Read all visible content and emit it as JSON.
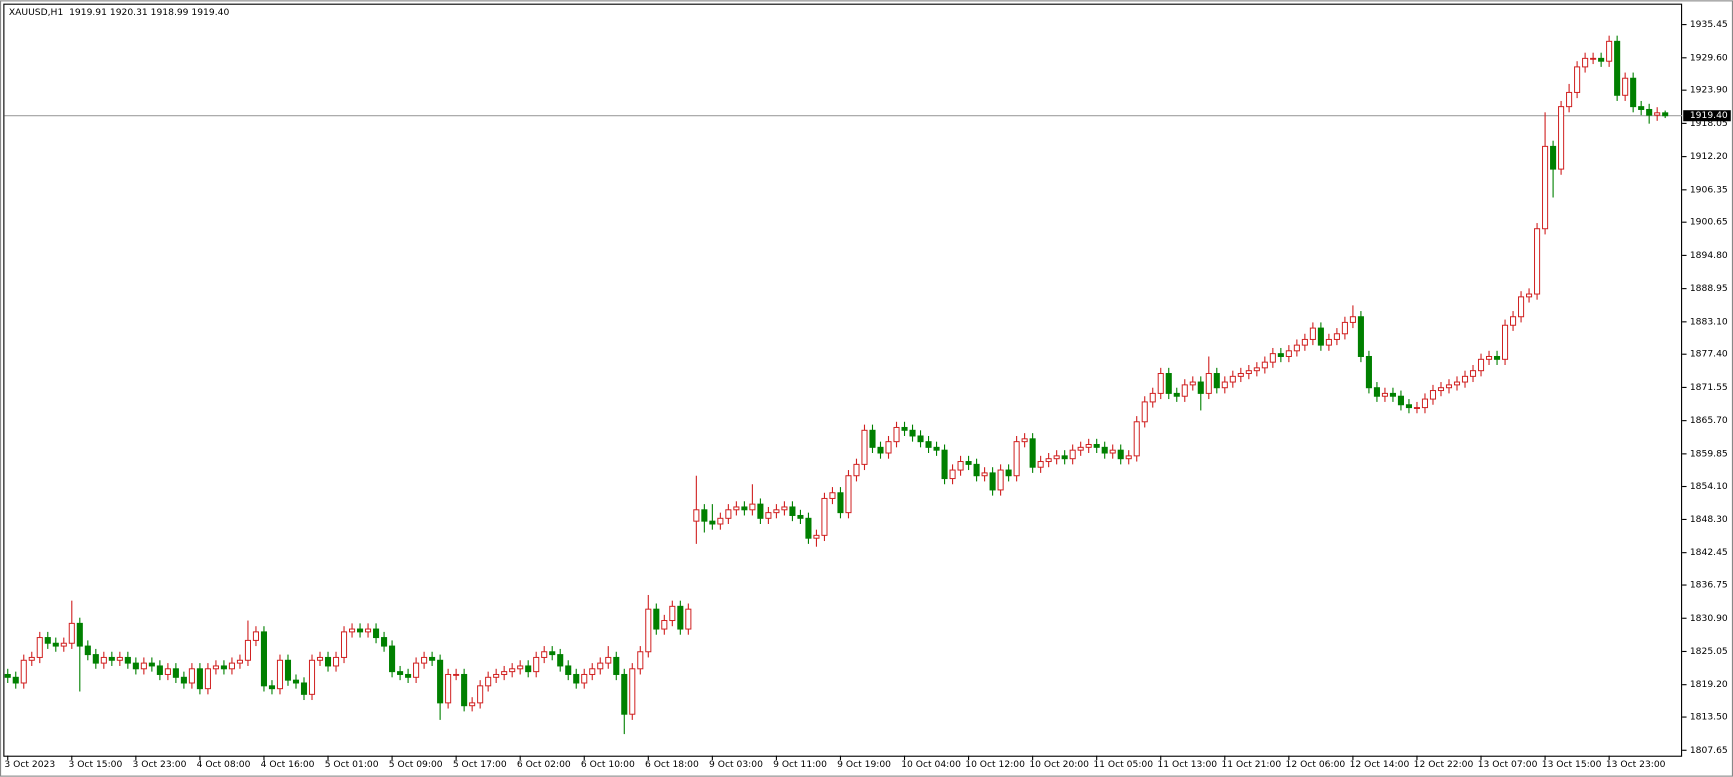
{
  "chart_data": {
    "type": "candlestick",
    "header": "XAUUSD,H1  1919.91 1920.31 1918.99 1919.40",
    "categories": [
      "3 Oct 2023",
      null,
      null,
      null,
      null,
      null,
      null,
      null,
      "3 Oct 15:00",
      null,
      null,
      null,
      null,
      null,
      null,
      null,
      "3 Oct 23:00",
      null,
      null,
      null,
      null,
      null,
      null,
      null,
      "4 Oct 08:00",
      null,
      null,
      null,
      null,
      null,
      null,
      null,
      "4 Oct 16:00",
      null,
      null,
      null,
      null,
      null,
      null,
      null,
      "5 Oct 01:00",
      null,
      null,
      null,
      null,
      null,
      null,
      null,
      "5 Oct 09:00",
      null,
      null,
      null,
      null,
      null,
      null,
      null,
      "5 Oct 17:00",
      null,
      null,
      null,
      null,
      null,
      null,
      null,
      "6 Oct 02:00",
      null,
      null,
      null,
      null,
      null,
      null,
      null,
      "6 Oct 10:00",
      null,
      null,
      null,
      null,
      null,
      null,
      null,
      "6 Oct 18:00",
      null,
      null,
      null,
      null,
      null,
      null,
      null,
      "9 Oct 03:00",
      null,
      null,
      null,
      null,
      null,
      null,
      null,
      "9 Oct 11:00",
      null,
      null,
      null,
      null,
      null,
      null,
      null,
      "9 Oct 19:00",
      null,
      null,
      null,
      null,
      null,
      null,
      null,
      "10 Oct 04:00",
      null,
      null,
      null,
      null,
      null,
      null,
      null,
      "10 Oct 12:00",
      null,
      null,
      null,
      null,
      null,
      null,
      null,
      "10 Oct 20:00",
      null,
      null,
      null,
      null,
      null,
      null,
      null,
      "11 Oct 05:00",
      null,
      null,
      null,
      null,
      null,
      null,
      null,
      "11 Oct 13:00",
      null,
      null,
      null,
      null,
      null,
      null,
      null,
      "11 Oct 21:00",
      null,
      null,
      null,
      null,
      null,
      null,
      null,
      "12 Oct 06:00",
      null,
      null,
      null,
      null,
      null,
      null,
      null,
      "12 Oct 14:00",
      null,
      null,
      null,
      null,
      null,
      null,
      null,
      "12 Oct 22:00",
      null,
      null,
      null,
      null,
      null,
      null,
      null,
      "13 Oct 07:00",
      null,
      null,
      null,
      null,
      null,
      null,
      null,
      "13 Oct 15:00",
      null,
      null,
      null,
      null,
      null,
      null,
      null,
      "13 Oct 23:00",
      null,
      null,
      null,
      null,
      null,
      null,
      null
    ],
    "open": [
      1821,
      1820.5,
      1819.5,
      1823.5,
      1824,
      1827.5,
      1826.5,
      1826,
      1826.5,
      1830,
      1826,
      1824.5,
      1823,
      1824,
      1823.5,
      1824,
      1823,
      1822,
      1823,
      1822.5,
      1821,
      1822,
      1820.5,
      1819.5,
      1822,
      1818.5,
      1822,
      1822.5,
      1822,
      1823,
      1823.5,
      1827,
      1828.5,
      1819,
      1818.5,
      1823.5,
      1820,
      1819.5,
      1817.5,
      1823.5,
      1824,
      1822.5,
      1824,
      1828.5,
      1829,
      1828.5,
      1829,
      1827.5,
      1826,
      1821.5,
      1821,
      1820.5,
      1823,
      1824,
      1823.5,
      1816,
      1821,
      1821,
      1815.5,
      1816,
      1819,
      1820.5,
      1821,
      1821.5,
      1822,
      1822.5,
      1821.5,
      1824,
      1825,
      1824.5,
      1822.5,
      1821,
      1819.5,
      1821,
      1822,
      1823,
      1824,
      1821,
      1814,
      1822,
      1825,
      1832.5,
      1829,
      1830.5,
      1833,
      1829,
      1848,
      1850,
      1848,
      1847.5,
      1848.5,
      1850,
      1850.5,
      1850,
      1851,
      1848.5,
      1849.5,
      1850,
      1850.5,
      1849,
      1848.5,
      1845,
      1845.5,
      1852,
      1853,
      1849.5,
      1856,
      1858,
      1864,
      1861,
      1860,
      1862,
      1864.5,
      1864,
      1863,
      1862,
      1861,
      1860.5,
      1855.5,
      1857,
      1858.5,
      1858,
      1856,
      1856.5,
      1853.5,
      1857,
      1856,
      1862,
      1862.5,
      1857.5,
      1858.5,
      1859,
      1859.5,
      1859,
      1860.5,
      1861,
      1861.5,
      1861,
      1860,
      1860.5,
      1859,
      1859.5,
      1865.5,
      1869,
      1870.5,
      1874,
      1870.5,
      1870,
      1872,
      1872.5,
      1870.5,
      1874,
      1871.5,
      1872.5,
      1873.5,
      1874,
      1874.5,
      1875,
      1876,
      1877.5,
      1877,
      1878,
      1879,
      1880,
      1882,
      1879,
      1880,
      1881,
      1883,
      1884,
      1877,
      1871.5,
      1870,
      1870.5,
      1870,
      1868.5,
      1868,
      1868,
      1869.5,
      1871,
      1871.5,
      1872,
      1872.5,
      1873.5,
      1874.5,
      1876.5,
      1877,
      1876.5,
      1882.5,
      1884,
      1887.5,
      1888,
      1899.5,
      1914,
      1910,
      1921,
      1923.5,
      1928,
      1929.5,
      1929.5,
      1929,
      1932.5,
      1923,
      1926,
      1921,
      1920.5,
      1919.5,
      1919.91
    ],
    "high": [
      1822,
      1821.5,
      1824.5,
      1825,
      1828.5,
      1828.5,
      1827.5,
      1827.5,
      1834,
      1831,
      1827,
      1825.5,
      1825,
      1825,
      1825,
      1825,
      1824,
      1824,
      1824,
      1823.5,
      1823,
      1823,
      1821.5,
      1823,
      1823,
      1823,
      1823.5,
      1823.5,
      1824,
      1824.5,
      1830.5,
      1829.5,
      1829.5,
      1820,
      1824.5,
      1824.5,
      1821,
      1820.5,
      1824.5,
      1825,
      1825,
      1825,
      1829.5,
      1830,
      1830,
      1830,
      1830,
      1828.5,
      1827,
      1822.5,
      1822,
      1824,
      1825,
      1825,
      1824.5,
      1822,
      1822,
      1822,
      1817,
      1820,
      1821.5,
      1822,
      1822.5,
      1823,
      1823.5,
      1823.5,
      1825,
      1826,
      1826,
      1825.5,
      1823.5,
      1822,
      1822,
      1823,
      1824,
      1826,
      1825,
      1822,
      1823,
      1826,
      1835,
      1833.5,
      1831.5,
      1834,
      1834,
      1833.5,
      1856,
      1851,
      1851,
      1849.5,
      1851,
      1851.5,
      1851.5,
      1854.5,
      1852,
      1850.5,
      1851,
      1851.5,
      1851.5,
      1850,
      1849.5,
      1846.5,
      1853,
      1854,
      1854,
      1857,
      1859,
      1865,
      1865,
      1862,
      1863,
      1865.5,
      1865.5,
      1865,
      1864,
      1863,
      1862,
      1861.5,
      1858,
      1859.5,
      1859.5,
      1859,
      1857.5,
      1857.5,
      1858,
      1858,
      1863,
      1863.5,
      1863.5,
      1859.5,
      1860,
      1860.5,
      1860.5,
      1861.5,
      1862,
      1862.5,
      1862.5,
      1862,
      1861.5,
      1861.5,
      1860.5,
      1866.5,
      1870,
      1871.5,
      1875,
      1875,
      1871.5,
      1873,
      1873.5,
      1873.5,
      1877,
      1875,
      1873.5,
      1874.5,
      1875,
      1875.5,
      1876,
      1877,
      1878.5,
      1878.5,
      1879,
      1880,
      1881,
      1883,
      1883,
      1881,
      1882,
      1884,
      1886,
      1885,
      1878,
      1872.5,
      1871.5,
      1871.5,
      1871,
      1869.5,
      1869,
      1870.5,
      1872,
      1872.5,
      1873,
      1873.5,
      1874.5,
      1875.5,
      1877.5,
      1878,
      1878,
      1883.5,
      1885,
      1888.5,
      1889,
      1900.5,
      1920,
      1915,
      1922,
      1925,
      1929,
      1930.5,
      1930.5,
      1930.5,
      1933.5,
      1933.5,
      1927,
      1927,
      1922,
      1921.5,
      1920.9,
      1920.31
    ],
    "low": [
      1819.5,
      1818.5,
      1818.5,
      1822.5,
      1823,
      1825.5,
      1825,
      1825,
      1825.5,
      1818,
      1823.5,
      1822,
      1822,
      1822.5,
      1822.5,
      1822,
      1821,
      1821,
      1821.5,
      1820,
      1820,
      1819.5,
      1818.5,
      1818.5,
      1817.5,
      1817.5,
      1821,
      1821,
      1821,
      1822,
      1822.5,
      1826,
      1818,
      1817.5,
      1817.5,
      1819,
      1818.5,
      1816.5,
      1816.5,
      1822.5,
      1821.5,
      1821.5,
      1823,
      1827.5,
      1827.5,
      1827.5,
      1826.5,
      1825,
      1820.5,
      1820,
      1819.5,
      1819.5,
      1822,
      1822.5,
      1813,
      1815,
      1820,
      1814.5,
      1814.5,
      1815,
      1818,
      1819.5,
      1820,
      1820.5,
      1821,
      1820.5,
      1820.5,
      1823,
      1823.5,
      1821.5,
      1820,
      1818.5,
      1818.5,
      1820,
      1821,
      1822,
      1820,
      1810.5,
      1813,
      1821,
      1824,
      1828,
      1828,
      1829.5,
      1828,
      1828,
      1844,
      1846,
      1846.5,
      1846.5,
      1847.5,
      1849,
      1849,
      1849,
      1847.5,
      1847.5,
      1848.5,
      1849,
      1848,
      1847.5,
      1844,
      1843.5,
      1844.5,
      1851,
      1848.5,
      1848.5,
      1855,
      1857,
      1860,
      1859,
      1859,
      1861,
      1863,
      1862,
      1861,
      1860,
      1859.5,
      1854.5,
      1854.5,
      1856,
      1857,
      1855,
      1855,
      1852.5,
      1852.5,
      1855,
      1855,
      1861,
      1856.5,
      1856.5,
      1857.5,
      1858,
      1858,
      1858,
      1859.5,
      1860,
      1860,
      1859,
      1859,
      1858,
      1858,
      1858.5,
      1864.5,
      1868,
      1869.5,
      1869.5,
      1869,
      1869,
      1871,
      1867.5,
      1869.5,
      1870.5,
      1870.5,
      1871.5,
      1872.5,
      1873,
      1873.5,
      1874,
      1875,
      1876,
      1876,
      1877,
      1878,
      1879,
      1878,
      1878,
      1879,
      1880,
      1882,
      1876,
      1870.5,
      1869,
      1869,
      1869,
      1867.5,
      1867,
      1867,
      1867,
      1868.5,
      1870,
      1870.5,
      1871,
      1871.5,
      1872.5,
      1873.5,
      1875.5,
      1875.5,
      1875.5,
      1881.5,
      1883,
      1886.5,
      1887,
      1898.5,
      1905,
      1909,
      1920,
      1922.5,
      1927,
      1928.5,
      1928,
      1928,
      1922,
      1922,
      1920,
      1919.5,
      1918,
      1918.5,
      1918.99
    ],
    "close": [
      1820.5,
      1819.5,
      1823.5,
      1824,
      1827.5,
      1826.5,
      1826,
      1826.5,
      1830,
      1826,
      1824.5,
      1823,
      1824,
      1823.5,
      1824,
      1823,
      1822,
      1823,
      1822.5,
      1821,
      1822,
      1820.5,
      1819.5,
      1822,
      1818.5,
      1822,
      1822.5,
      1822,
      1823,
      1823.5,
      1827,
      1828.5,
      1819,
      1818.5,
      1823.5,
      1820,
      1819.5,
      1817.5,
      1823.5,
      1824,
      1822.5,
      1824,
      1828.5,
      1829,
      1828.5,
      1829,
      1827.5,
      1826,
      1821.5,
      1821,
      1820.5,
      1823,
      1824,
      1823.5,
      1816,
      1821,
      1821,
      1815.5,
      1816,
      1819,
      1820.5,
      1821,
      1821.5,
      1822,
      1822.5,
      1821.5,
      1824,
      1825,
      1824.5,
      1822.5,
      1821,
      1819.5,
      1821,
      1822,
      1823,
      1824,
      1821,
      1814,
      1822,
      1825,
      1832.5,
      1829,
      1830.5,
      1833,
      1829,
      1832.5,
      1850,
      1848,
      1847.5,
      1848.5,
      1850,
      1850.5,
      1850,
      1851,
      1848.5,
      1849.5,
      1850,
      1850.5,
      1849,
      1848.5,
      1845,
      1845.5,
      1852,
      1853,
      1849.5,
      1856,
      1858,
      1864,
      1861,
      1860,
      1862,
      1864.5,
      1864,
      1863,
      1862,
      1861,
      1860.5,
      1855.5,
      1857,
      1858.5,
      1858,
      1856,
      1856.5,
      1853.5,
      1857,
      1856,
      1862,
      1862.5,
      1857.5,
      1858.5,
      1859,
      1859.5,
      1859,
      1860.5,
      1861,
      1861.5,
      1861,
      1860,
      1860.5,
      1859,
      1859.5,
      1865.5,
      1869,
      1870.5,
      1874,
      1870.5,
      1870,
      1872,
      1872.5,
      1870.5,
      1874,
      1871.5,
      1872.5,
      1873.5,
      1874,
      1874.5,
      1875,
      1876,
      1877.5,
      1877,
      1878,
      1879,
      1880,
      1882,
      1879,
      1880,
      1881,
      1883,
      1884,
      1877,
      1871.5,
      1870,
      1870.5,
      1870,
      1868.5,
      1868,
      1868,
      1869.5,
      1871,
      1871.5,
      1872,
      1872.5,
      1873.5,
      1874.5,
      1876.5,
      1877,
      1876.5,
      1882.5,
      1884,
      1887.5,
      1888,
      1899.5,
      1914,
      1910,
      1921,
      1923.5,
      1928,
      1929.5,
      1929.5,
      1929,
      1932.5,
      1923,
      1926,
      1921,
      1920.5,
      1919.5,
      1919.91,
      1919.4
    ],
    "up_color": "#d02020",
    "down_color": "#008000",
    "ylim": [
      1806.7,
      1938.75
    ],
    "yticks": [
      1935.45,
      {
        "value": 1929.6,
        "label": "1929.60"
      },
      {
        "value": 1923.9,
        "label": "1923.90"
      },
      1918.05,
      {
        "value": 1912.2,
        "label": "1912.20"
      },
      1906.35,
      1900.65,
      {
        "value": 1894.8,
        "label": "1894.80"
      },
      1888.95,
      {
        "value": 1883.1,
        "label": "1883.10"
      },
      {
        "value": 1877.4,
        "label": "1877.40"
      },
      1871.55,
      {
        "value": 1865.7,
        "label": "1865.70"
      },
      1859.85,
      {
        "value": 1854.1,
        "label": "1854.10"
      },
      {
        "value": 1848.3,
        "label": "1848.30"
      },
      1842.45,
      1836.75,
      {
        "value": 1830.9,
        "label": "1830.90"
      },
      1825.05,
      {
        "value": 1819.2,
        "label": "1819.20"
      },
      {
        "value": 1813.5,
        "label": "1813.50"
      },
      1807.65
    ],
    "current_price": {
      "value": 1919.4,
      "label": "1919.40"
    },
    "grid": false
  }
}
